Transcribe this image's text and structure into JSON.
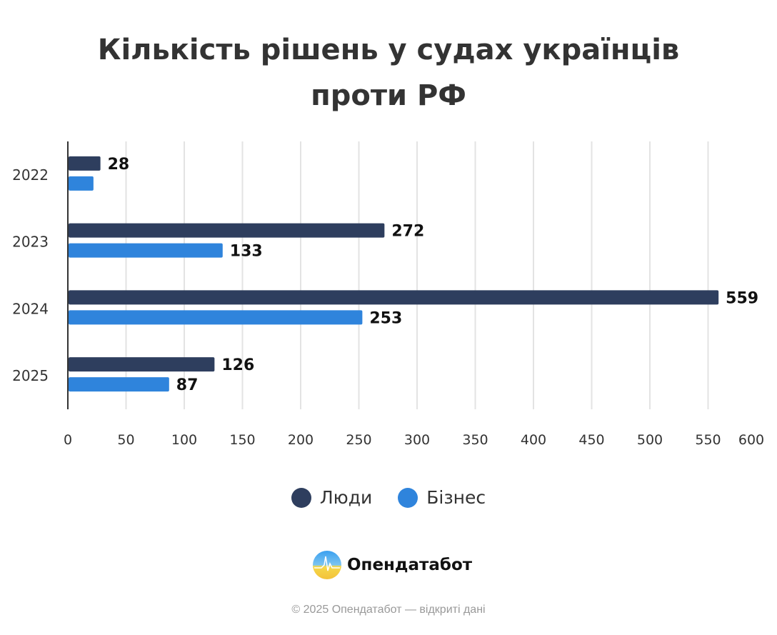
{
  "chart_data": {
    "type": "bar",
    "orientation": "horizontal",
    "title": "Кількість рішень у судах українців проти РФ",
    "title_lines": [
      "Кількість рішень у судах українців",
      "проти РФ"
    ],
    "categories": [
      "2022",
      "2023",
      "2024",
      "2025"
    ],
    "series": [
      {
        "name": "Люди",
        "color": "#2e3e5e",
        "values": [
          28,
          272,
          559,
          126
        ],
        "labels_shown": [
          true,
          true,
          true,
          true
        ]
      },
      {
        "name": "Бізнес",
        "color": "#2f84dc",
        "values": [
          22,
          133,
          253,
          87
        ],
        "labels_shown": [
          false,
          true,
          true,
          true
        ]
      }
    ],
    "xlim": [
      0,
      600
    ],
    "xticks": [
      0,
      50,
      100,
      150,
      200,
      250,
      300,
      350,
      400,
      450,
      500,
      550,
      600
    ],
    "grid": true,
    "legend_position": "bottom"
  },
  "brand": {
    "name": "Опендатабот"
  },
  "footer": "© 2025 Опендатабот — відкриті дані"
}
